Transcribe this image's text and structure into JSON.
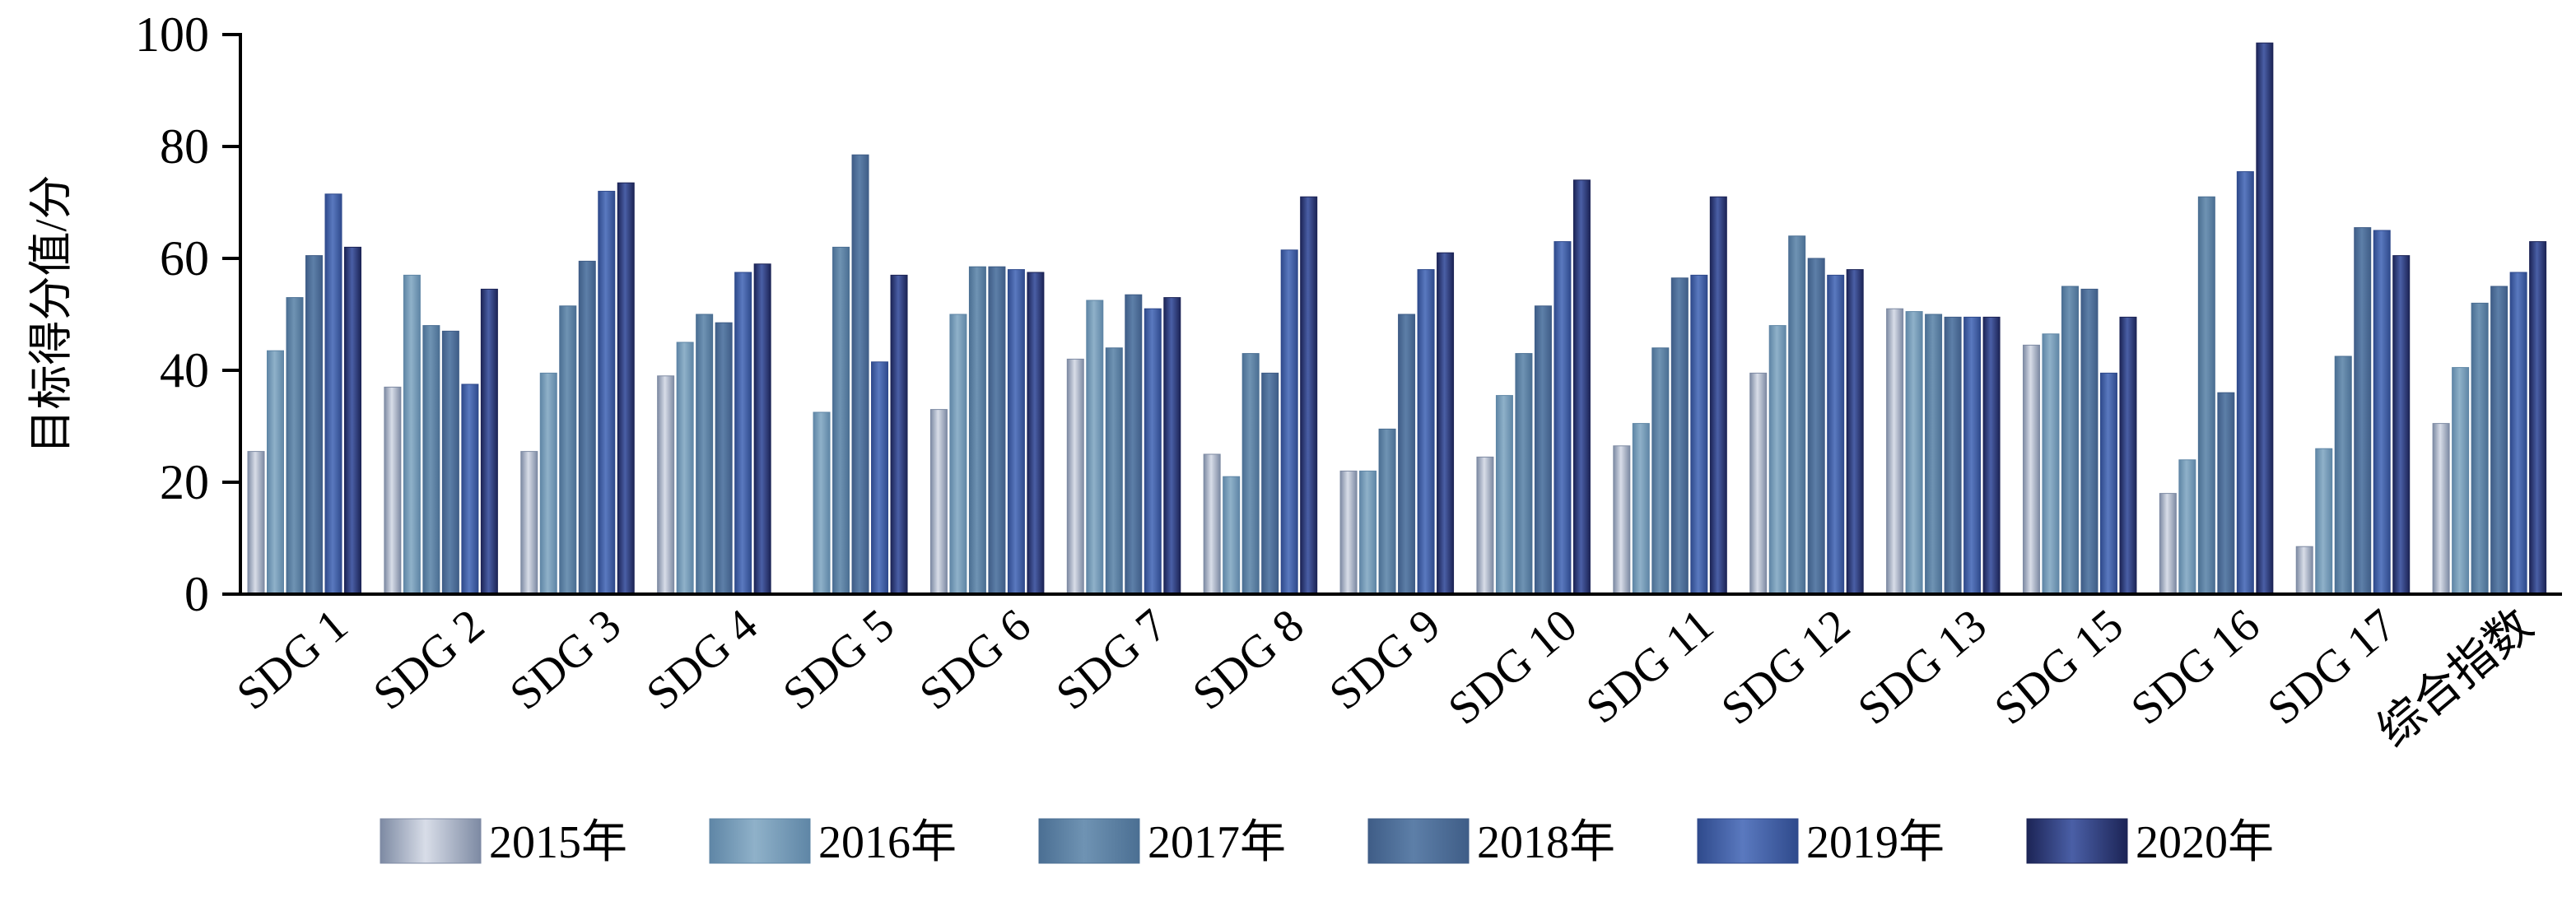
{
  "chart_data": {
    "type": "bar",
    "title": "",
    "xlabel": "",
    "ylabel": "目标得分值/分",
    "ylim": [
      0,
      100
    ],
    "yticks": [
      0,
      20,
      40,
      60,
      80,
      100
    ],
    "grid": false,
    "legend_position": "bottom",
    "categories": [
      "SDG 1",
      "SDG 2",
      "SDG 3",
      "SDG 4",
      "SDG 5",
      "SDG 6",
      "SDG 7",
      "SDG 8",
      "SDG 9",
      "SDG 10",
      "SDG 11",
      "SDG 12",
      "SDG 13",
      "SDG 15",
      "SDG 16",
      "SDG 17",
      "综合指数"
    ],
    "series": [
      {
        "name": "2015年",
        "color_light": "#d8dde8",
        "color_dark": "#7d8aa3",
        "values": [
          25.5,
          37,
          25.5,
          39,
          0,
          33,
          42,
          25,
          22,
          24.5,
          26.5,
          39.5,
          51,
          44.5,
          18,
          8.5,
          30.5
        ]
      },
      {
        "name": "2016年",
        "color_light": "#8fb1c9",
        "color_dark": "#5f86a6",
        "values": [
          43.5,
          57,
          39.5,
          45,
          32.5,
          50,
          52.5,
          21,
          22,
          35.5,
          30.5,
          48,
          50.5,
          46.5,
          24,
          26,
          40.5
        ]
      },
      {
        "name": "2017年",
        "color_light": "#6f93b3",
        "color_dark": "#4b6f93",
        "values": [
          53,
          48,
          51.5,
          50,
          62,
          58.5,
          44,
          43,
          29.5,
          43,
          44,
          64,
          50,
          55,
          71,
          42.5,
          52
        ]
      },
      {
        "name": "2018年",
        "color_light": "#5d7fa8",
        "color_dark": "#3f5d87",
        "values": [
          60.5,
          47,
          59.5,
          48.5,
          78.5,
          58.5,
          53.5,
          39.5,
          50,
          51.5,
          56.5,
          60,
          49.5,
          54.5,
          36,
          65.5,
          55
        ]
      },
      {
        "name": "2019年",
        "color_light": "#5a79bf",
        "color_dark": "#2f4a8c",
        "values": [
          71.5,
          37.5,
          72,
          57.5,
          41.5,
          58,
          51,
          61.5,
          58,
          63,
          57,
          57,
          49.5,
          39.5,
          75.5,
          65,
          57.5
        ]
      },
      {
        "name": "2020年",
        "color_light": "#4a5fa6",
        "color_dark": "#1c2456",
        "values": [
          62,
          54.5,
          73.5,
          59,
          57,
          57.5,
          53,
          71,
          61,
          74,
          71,
          58,
          49.5,
          49.5,
          98.5,
          60.5,
          63
        ]
      }
    ]
  }
}
